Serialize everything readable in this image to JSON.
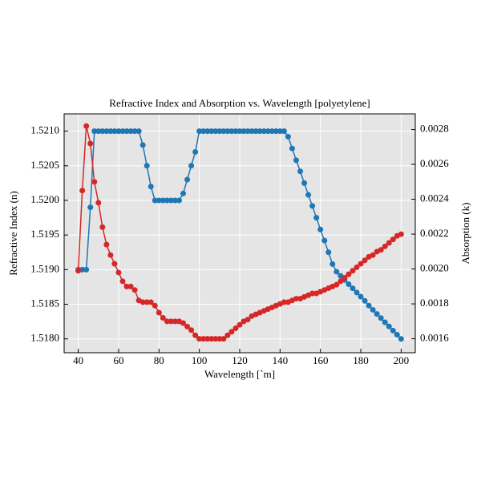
{
  "chart_data": {
    "type": "line",
    "title": "Refractive Index and Absorption vs. Wavelength [polyetylene]",
    "xlabel": "Wavelength [`m]",
    "ylabel": "Refractive Index (n)",
    "y2label": "Absorption (k)",
    "x": [
      40,
      42,
      44,
      46,
      48,
      50,
      52,
      54,
      56,
      58,
      60,
      62,
      64,
      66,
      68,
      70,
      72,
      74,
      76,
      78,
      80,
      82,
      84,
      86,
      88,
      90,
      92,
      94,
      96,
      98,
      100,
      102,
      104,
      106,
      108,
      110,
      112,
      114,
      116,
      118,
      120,
      122,
      124,
      126,
      128,
      130,
      132,
      134,
      136,
      138,
      140,
      142,
      144,
      146,
      148,
      150,
      152,
      154,
      156,
      158,
      160,
      162,
      164,
      166,
      168,
      170,
      172,
      174,
      176,
      178,
      180,
      182,
      184,
      186,
      188,
      190,
      192,
      194,
      196,
      198,
      200
    ],
    "series": [
      {
        "color": "#1f77b4",
        "axis": "y",
        "values": [
          1.519,
          1.519,
          1.519,
          1.5199,
          1.521,
          1.521,
          1.521,
          1.521,
          1.521,
          1.521,
          1.521,
          1.521,
          1.521,
          1.521,
          1.521,
          1.521,
          1.5208,
          1.5205,
          1.5202,
          1.52,
          1.52,
          1.52,
          1.52,
          1.52,
          1.52,
          1.52,
          1.5201,
          1.5203,
          1.5205,
          1.5207,
          1.521,
          1.521,
          1.521,
          1.521,
          1.521,
          1.521,
          1.521,
          1.521,
          1.521,
          1.521,
          1.521,
          1.521,
          1.521,
          1.521,
          1.521,
          1.521,
          1.521,
          1.521,
          1.521,
          1.521,
          1.521,
          1.521,
          1.52092,
          1.52075,
          1.52058,
          1.52042,
          1.52025,
          1.52008,
          1.51992,
          1.51975,
          1.51958,
          1.51942,
          1.51925,
          1.51908,
          1.51897,
          1.51891,
          1.51885,
          1.51879,
          1.51873,
          1.51867,
          1.51861,
          1.51855,
          1.51848,
          1.51842,
          1.51836,
          1.5183,
          1.51824,
          1.51818,
          1.51812,
          1.51806,
          1.518
        ]
      },
      {
        "color": "#d62728",
        "axis": "y2",
        "values": [
          0.00199,
          0.00245,
          0.00282,
          0.00272,
          0.0025,
          0.00238,
          0.00224,
          0.00214,
          0.00208,
          0.00203,
          0.00198,
          0.00193,
          0.0019,
          0.0019,
          0.00188,
          0.00182,
          0.00181,
          0.00181,
          0.00181,
          0.00179,
          0.00175,
          0.00172,
          0.0017,
          0.0017,
          0.0017,
          0.0017,
          0.00169,
          0.00167,
          0.00165,
          0.00162,
          0.0016,
          0.0016,
          0.0016,
          0.0016,
          0.0016,
          0.0016,
          0.0016,
          0.00162,
          0.00164,
          0.00166,
          0.00168,
          0.0017,
          0.00171,
          0.00173,
          0.00174,
          0.00175,
          0.00176,
          0.00177,
          0.00178,
          0.00179,
          0.0018,
          0.00181,
          0.00181,
          0.00182,
          0.00183,
          0.00183,
          0.00184,
          0.00185,
          0.00186,
          0.00186,
          0.00187,
          0.00188,
          0.00189,
          0.0019,
          0.00191,
          0.00193,
          0.00195,
          0.00197,
          0.00199,
          0.00201,
          0.00203,
          0.00205,
          0.00207,
          0.00208,
          0.0021,
          0.00211,
          0.00213,
          0.00215,
          0.00217,
          0.00219,
          0.0022
        ]
      }
    ],
    "xlim": [
      33,
      207
    ],
    "xticks": [
      40,
      60,
      80,
      100,
      120,
      140,
      160,
      180,
      200
    ],
    "ylim": [
      1.5178,
      1.52125
    ],
    "yticks": [
      {
        "value": 1.518,
        "label": "1.5180"
      },
      1.5185,
      {
        "value": 1.519,
        "label": "1.5190"
      },
      1.5195,
      {
        "value": 1.52,
        "label": "1.5200"
      },
      1.5205,
      {
        "value": 1.521,
        "label": "1.5210"
      }
    ],
    "y2lim": [
      0.00152,
      0.00289
    ],
    "y2ticks": [
      0.0016,
      0.0018,
      {
        "value": 0.002,
        "label": "0.0020"
      },
      0.0022,
      0.0024,
      0.0026,
      0.0028
    ],
    "grid": true
  }
}
